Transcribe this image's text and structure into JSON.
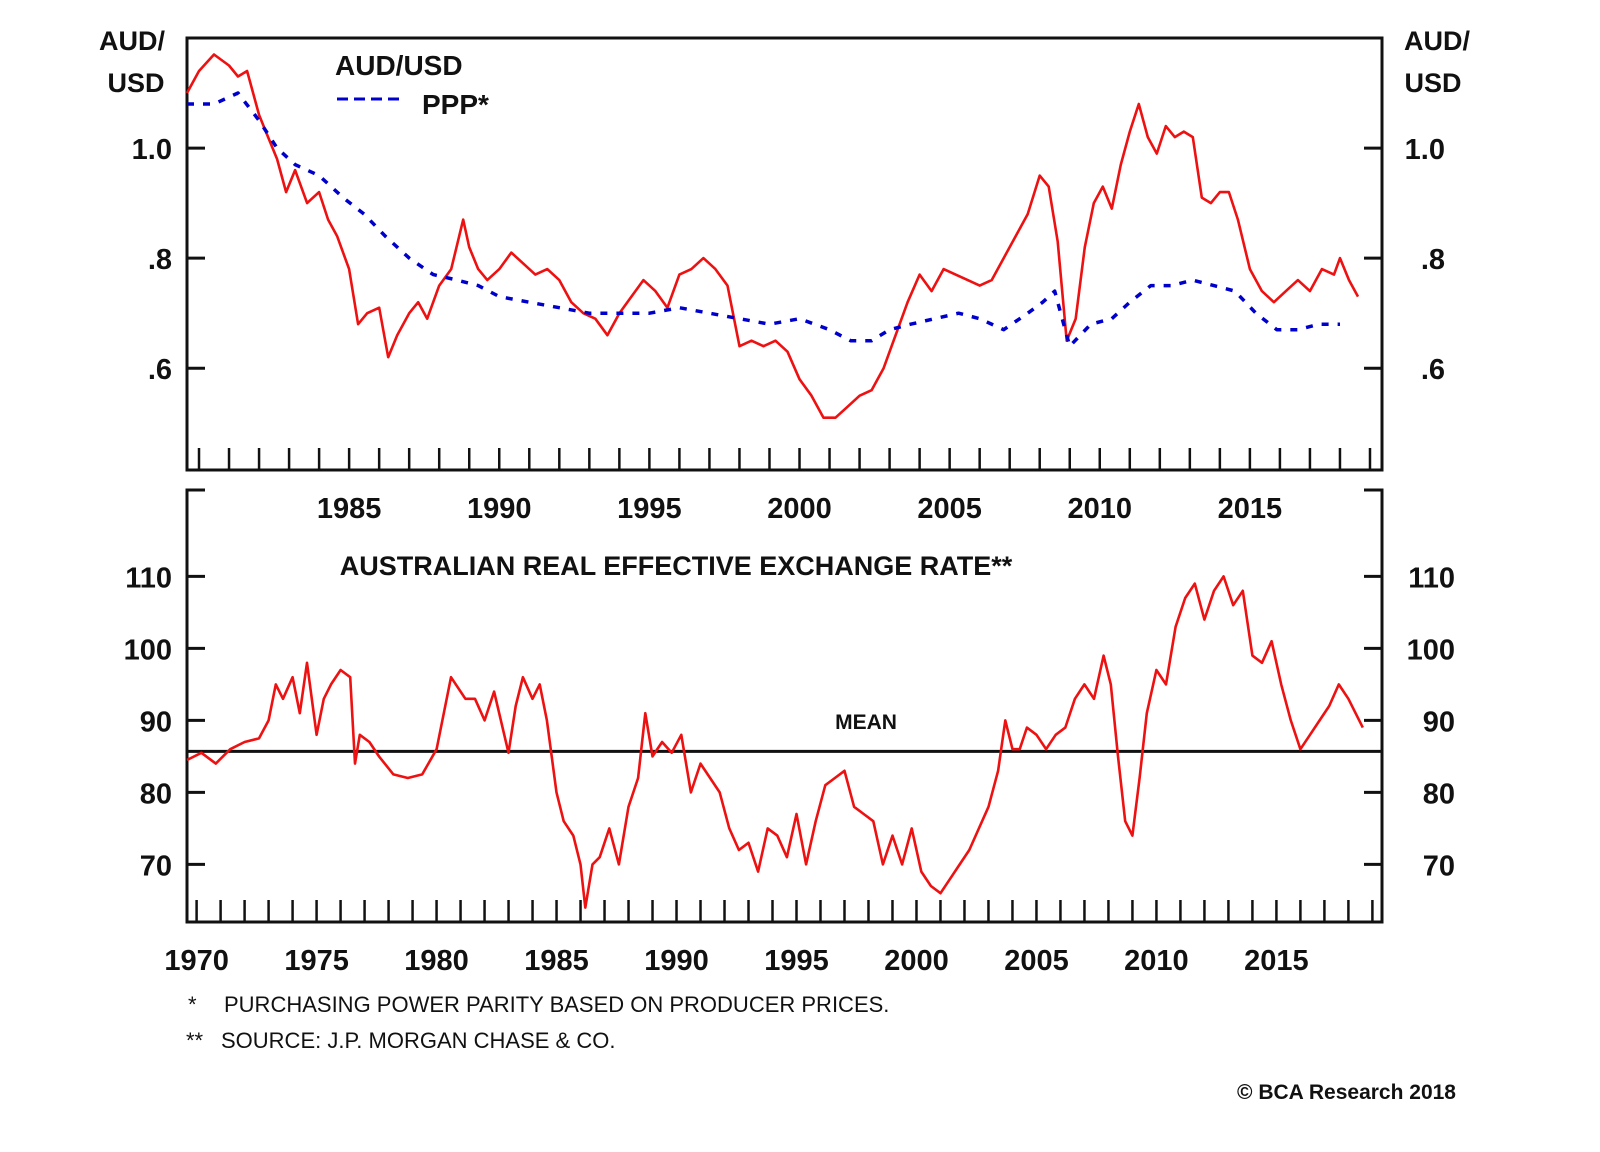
{
  "chart_data": [
    {
      "type": "line",
      "panel": "top",
      "title": "",
      "ylabel_left": "AUD/\nUSD",
      "ylabel_right": "AUD/\nUSD",
      "y_unit_lines": [
        "AUD/",
        "USD"
      ],
      "xlabel": "",
      "xlim": [
        1979.6,
        2019.4
      ],
      "ylim": [
        0.415,
        1.2
      ],
      "x_ticks": [
        "1985",
        "1990",
        "1995",
        "2000",
        "2005",
        "2010",
        "2015"
      ],
      "x_tick_values": [
        1985,
        1990,
        1995,
        2000,
        2005,
        2010,
        2015
      ],
      "y_ticks": [
        "1.0",
        ".8",
        ".6"
      ],
      "y_tick_values": [
        1.0,
        0.8,
        0.6
      ],
      "legend": [
        {
          "label": "AUD/USD",
          "color": "#ee1111",
          "style": "solid"
        },
        {
          "label": "PPP*",
          "color": "#0000cc",
          "style": "dashed"
        }
      ],
      "legend_position": "top-left",
      "series": [
        {
          "name": "AUD/USD",
          "color": "#ee1111",
          "x": [
            1979.6,
            1980.0,
            1980.5,
            1981.0,
            1981.3,
            1981.6,
            1982.0,
            1982.3,
            1982.6,
            1982.9,
            1983.2,
            1983.6,
            1984.0,
            1984.3,
            1984.6,
            1985.0,
            1985.3,
            1985.6,
            1986.0,
            1986.3,
            1986.6,
            1987.0,
            1987.3,
            1987.6,
            1988.0,
            1988.4,
            1988.8,
            1989.0,
            1989.3,
            1989.6,
            1990.0,
            1990.4,
            1990.8,
            1991.2,
            1991.6,
            1992.0,
            1992.4,
            1992.8,
            1993.2,
            1993.6,
            1994.0,
            1994.4,
            1994.8,
            1995.2,
            1995.6,
            1996.0,
            1996.4,
            1996.8,
            1997.2,
            1997.6,
            1998.0,
            1998.4,
            1998.8,
            1999.2,
            1999.6,
            2000.0,
            2000.4,
            2000.8,
            2001.2,
            2001.6,
            2002.0,
            2002.4,
            2002.8,
            2003.2,
            2003.6,
            2004.0,
            2004.4,
            2004.8,
            2005.2,
            2005.6,
            2006.0,
            2006.4,
            2006.8,
            2007.2,
            2007.6,
            2008.0,
            2008.3,
            2008.6,
            2008.9,
            2009.2,
            2009.5,
            2009.8,
            2010.1,
            2010.4,
            2010.7,
            2011.0,
            2011.3,
            2011.6,
            2011.9,
            2012.2,
            2012.5,
            2012.8,
            2013.1,
            2013.4,
            2013.7,
            2014.0,
            2014.3,
            2014.6,
            2015.0,
            2015.4,
            2015.8,
            2016.2,
            2016.6,
            2017.0,
            2017.4,
            2017.8,
            2018.0,
            2018.3,
            2018.6
          ],
          "values": [
            1.1,
            1.14,
            1.17,
            1.15,
            1.13,
            1.14,
            1.06,
            1.02,
            0.98,
            0.92,
            0.96,
            0.9,
            0.92,
            0.87,
            0.84,
            0.78,
            0.68,
            0.7,
            0.71,
            0.62,
            0.66,
            0.7,
            0.72,
            0.69,
            0.75,
            0.78,
            0.87,
            0.82,
            0.78,
            0.76,
            0.78,
            0.81,
            0.79,
            0.77,
            0.78,
            0.76,
            0.72,
            0.7,
            0.69,
            0.66,
            0.7,
            0.73,
            0.76,
            0.74,
            0.71,
            0.77,
            0.78,
            0.8,
            0.78,
            0.75,
            0.64,
            0.65,
            0.64,
            0.65,
            0.63,
            0.58,
            0.55,
            0.51,
            0.51,
            0.53,
            0.55,
            0.56,
            0.6,
            0.66,
            0.72,
            0.77,
            0.74,
            0.78,
            0.77,
            0.76,
            0.75,
            0.76,
            0.8,
            0.84,
            0.88,
            0.95,
            0.93,
            0.83,
            0.65,
            0.69,
            0.82,
            0.9,
            0.93,
            0.89,
            0.97,
            1.03,
            1.08,
            1.02,
            0.99,
            1.04,
            1.02,
            1.03,
            1.02,
            0.91,
            0.9,
            0.92,
            0.92,
            0.87,
            0.78,
            0.74,
            0.72,
            0.74,
            0.76,
            0.74,
            0.78,
            0.77,
            0.8,
            0.76,
            0.73
          ],
          "style": "solid"
        },
        {
          "name": "PPP*",
          "color": "#0000cc",
          "x": [
            1979.6,
            1980.5,
            1981.3,
            1982.0,
            1982.6,
            1983.2,
            1984.0,
            1984.8,
            1985.5,
            1986.2,
            1987.0,
            1987.8,
            1988.6,
            1989.3,
            1990.0,
            1991.0,
            1992.0,
            1993.0,
            1994.0,
            1995.0,
            1996.0,
            1997.0,
            1998.0,
            1999.0,
            2000.0,
            2000.5,
            2001.0,
            2001.7,
            2002.4,
            2003.0,
            2003.7,
            2004.5,
            2005.3,
            2006.0,
            2006.8,
            2007.6,
            2008.1,
            2008.5,
            2009.0,
            2009.7,
            2010.4,
            2011.0,
            2011.7,
            2012.4,
            2013.1,
            2013.8,
            2014.5,
            2015.2,
            2015.9,
            2016.6,
            2017.3,
            2018.0
          ],
          "values": [
            1.08,
            1.08,
            1.1,
            1.05,
            1.0,
            0.97,
            0.95,
            0.91,
            0.88,
            0.84,
            0.8,
            0.77,
            0.76,
            0.75,
            0.73,
            0.72,
            0.71,
            0.7,
            0.7,
            0.7,
            0.71,
            0.7,
            0.69,
            0.68,
            0.69,
            0.68,
            0.67,
            0.65,
            0.65,
            0.67,
            0.68,
            0.69,
            0.7,
            0.69,
            0.67,
            0.7,
            0.72,
            0.74,
            0.64,
            0.68,
            0.69,
            0.72,
            0.75,
            0.75,
            0.76,
            0.75,
            0.74,
            0.7,
            0.67,
            0.67,
            0.68,
            0.68
          ],
          "style": "dashed"
        }
      ]
    },
    {
      "type": "line",
      "panel": "bottom",
      "title": "AUSTRALIAN REAL EFFECTIVE EXCHANGE RATE**",
      "xlabel": "",
      "ylabel": "",
      "xlim": [
        1969.6,
        2019.4
      ],
      "ylim": [
        62,
        122
      ],
      "x_ticks": [
        "1970",
        "1975",
        "1980",
        "1985",
        "1990",
        "1995",
        "2000",
        "2005",
        "2010",
        "2015"
      ],
      "x_tick_values": [
        1970,
        1975,
        1980,
        1985,
        1990,
        1995,
        2000,
        2005,
        2010,
        2015
      ],
      "y_ticks": [
        "110",
        "100",
        "90",
        "80",
        "70"
      ],
      "y_tick_values": [
        110,
        100,
        90,
        80,
        70
      ],
      "mean": {
        "label": "MEAN",
        "value": 85.7
      },
      "series": [
        {
          "name": "Australian REER",
          "color": "#ee1111",
          "x": [
            1969.6,
            1970.2,
            1970.8,
            1971.4,
            1972.0,
            1972.6,
            1973.0,
            1973.3,
            1973.6,
            1974.0,
            1974.3,
            1974.6,
            1975.0,
            1975.3,
            1975.6,
            1976.0,
            1976.4,
            1976.6,
            1976.8,
            1977.2,
            1977.6,
            1978.2,
            1978.8,
            1979.4,
            1980.0,
            1980.6,
            1981.2,
            1981.6,
            1982.0,
            1982.4,
            1983.0,
            1983.3,
            1983.6,
            1984.0,
            1984.3,
            1984.6,
            1985.0,
            1985.3,
            1985.7,
            1986.0,
            1986.2,
            1986.5,
            1986.8,
            1987.2,
            1987.6,
            1988.0,
            1988.4,
            1988.7,
            1989.0,
            1989.4,
            1989.8,
            1990.2,
            1990.6,
            1991.0,
            1991.4,
            1991.8,
            1992.2,
            1992.6,
            1993.0,
            1993.4,
            1993.8,
            1994.2,
            1994.6,
            1995.0,
            1995.4,
            1995.8,
            1996.2,
            1996.6,
            1997.0,
            1997.4,
            1997.8,
            1998.2,
            1998.6,
            1999.0,
            1999.4,
            1999.8,
            2000.2,
            2000.6,
            2001.0,
            2001.4,
            2001.8,
            2002.2,
            2002.6,
            2003.0,
            2003.4,
            2003.7,
            2004.0,
            2004.3,
            2004.6,
            2005.0,
            2005.4,
            2005.8,
            2006.2,
            2006.6,
            2007.0,
            2007.4,
            2007.8,
            2008.1,
            2008.4,
            2008.7,
            2009.0,
            2009.3,
            2009.6,
            2010.0,
            2010.4,
            2010.8,
            2011.2,
            2011.6,
            2012.0,
            2012.4,
            2012.8,
            2013.2,
            2013.6,
            2014.0,
            2014.4,
            2014.8,
            2015.2,
            2015.6,
            2016.0,
            2016.4,
            2016.8,
            2017.2,
            2017.6,
            2018.0,
            2018.3,
            2018.6
          ],
          "values": [
            84.5,
            85.5,
            84.0,
            86.0,
            87.0,
            87.5,
            90.0,
            95.0,
            93.0,
            96.0,
            91.0,
            98.0,
            88.0,
            93.0,
            95.0,
            97.0,
            96.0,
            84.0,
            88.0,
            87.0,
            85.0,
            82.5,
            82.0,
            82.5,
            86.0,
            96.0,
            93.0,
            93.0,
            90.0,
            94.0,
            85.5,
            92.0,
            96.0,
            93.0,
            95.0,
            90.0,
            80.0,
            76.0,
            74.0,
            70.0,
            64.0,
            70.0,
            71.0,
            75.0,
            70.0,
            78.0,
            82.0,
            91.0,
            85.0,
            87.0,
            85.5,
            88.0,
            80.0,
            84.0,
            82.0,
            80.0,
            75.0,
            72.0,
            73.0,
            69.0,
            75.0,
            74.0,
            71.0,
            77.0,
            70.0,
            76.0,
            81.0,
            82.0,
            83.0,
            78.0,
            77.0,
            76.0,
            70.0,
            74.0,
            70.0,
            75.0,
            69.0,
            67.0,
            66.0,
            68.0,
            70.0,
            72.0,
            75.0,
            78.0,
            83.0,
            90.0,
            86.0,
            86.0,
            89.0,
            88.0,
            86.0,
            88.0,
            89.0,
            93.0,
            95.0,
            93.0,
            99.0,
            95.0,
            85.0,
            76.0,
            74.0,
            82.0,
            91.0,
            97.0,
            95.0,
            103.0,
            107.0,
            109.0,
            104.0,
            108.0,
            110.0,
            106.0,
            108.0,
            99.0,
            98.0,
            101.0,
            95.0,
            90.0,
            86.0,
            88.0,
            90.0,
            92.0,
            95.0,
            93.0,
            91.0,
            89.0
          ],
          "style": "solid"
        }
      ]
    }
  ],
  "footnotes": {
    "note1_marker": "*",
    "note1": "PURCHASING POWER PARITY BASED ON PRODUCER PRICES.",
    "note2_marker": "**",
    "note2": "SOURCE: J.P. MORGAN CHASE & CO.",
    "copyright": "© BCA Research 2018"
  },
  "colors": {
    "aud_usd": "#ee1111",
    "ppp": "#0000cc",
    "axis": "#111111",
    "text": "#111111"
  }
}
